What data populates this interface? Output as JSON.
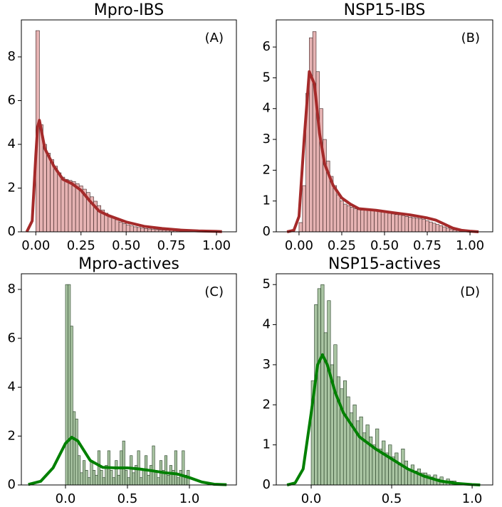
{
  "chart_data": [
    {
      "type": "histogram",
      "title": "Mpro-IBS",
      "annotation": "(A)",
      "color": "#e6b3b3",
      "edgecolor": "#3a2020",
      "bins": [
        0,
        0.02,
        0.04,
        0.06,
        0.08,
        0.1,
        0.12,
        0.14,
        0.16,
        0.18,
        0.2,
        0.22,
        0.24,
        0.26,
        0.28,
        0.3,
        0.32,
        0.34,
        0.36,
        0.38,
        0.4,
        0.42,
        0.44,
        0.46,
        0.48,
        0.5,
        0.52,
        0.54,
        0.56,
        0.58,
        0.6,
        0.62,
        0.64,
        0.66,
        0.68,
        0.7,
        0.72,
        0.74,
        0.76,
        0.78,
        0.8,
        0.82,
        0.84,
        0.86,
        0.88,
        0.9,
        0.92,
        0.94,
        0.96,
        0.98,
        1
      ],
      "values": [
        9.2,
        4.9,
        4.0,
        3.6,
        3.3,
        3.0,
        2.7,
        2.5,
        2.4,
        2.35,
        2.3,
        2.2,
        2.1,
        1.95,
        1.8,
        1.6,
        1.4,
        1.2,
        1.0,
        0.85,
        0.75,
        0.65,
        0.55,
        0.45,
        0.38,
        0.32,
        0.27,
        0.23,
        0.2,
        0.17,
        0.15,
        0.13,
        0.11,
        0.1,
        0.09,
        0.08,
        0.07,
        0.06,
        0.05,
        0.05,
        0.04,
        0.04,
        0.03,
        0.03,
        0.02,
        0.02,
        0.02,
        0.01,
        0.01,
        0.01
      ],
      "kde": {
        "color": "#a52a2a",
        "x": [
          -0.05,
          -0.02,
          0,
          0.01,
          0.02,
          0.05,
          0.1,
          0.15,
          0.2,
          0.25,
          0.3,
          0.35,
          0.4,
          0.5,
          0.6,
          0.7,
          0.8,
          0.9,
          1.0,
          1.03
        ],
        "values": [
          0,
          0.5,
          3.5,
          4.8,
          5.1,
          3.8,
          3.0,
          2.4,
          2.2,
          1.9,
          1.4,
          0.95,
          0.75,
          0.45,
          0.25,
          0.15,
          0.08,
          0.04,
          0.02,
          0.01
        ]
      },
      "xlim": [
        -0.08,
        1.11
      ],
      "ylim": [
        0,
        9.69
      ],
      "xticks": [
        {
          "value": 0,
          "label": "0.00"
        },
        0.25,
        {
          "value": 0.5,
          "label": "0.50"
        },
        0.75,
        {
          "value": 1,
          "label": "1.00"
        }
      ],
      "yticks": [
        0,
        2,
        4,
        6,
        8
      ]
    },
    {
      "type": "histogram",
      "title": "NSP15-IBS",
      "annotation": "(B)",
      "color": "#e6b3b3",
      "edgecolor": "#3a2020",
      "bins": [
        0,
        0.02,
        0.04,
        0.06,
        0.08,
        0.1,
        0.12,
        0.14,
        0.16,
        0.18,
        0.2,
        0.22,
        0.24,
        0.26,
        0.28,
        0.3,
        0.32,
        0.34,
        0.36,
        0.38,
        0.4,
        0.42,
        0.44,
        0.46,
        0.48,
        0.5,
        0.52,
        0.54,
        0.56,
        0.58,
        0.6,
        0.62,
        0.64,
        0.66,
        0.68,
        0.7,
        0.72,
        0.74,
        0.76,
        0.78,
        0.8,
        0.82,
        0.84,
        0.86,
        0.88,
        0.9,
        0.92,
        0.94,
        0.96,
        0.98,
        1
      ],
      "values": [
        0.3,
        1.5,
        4.5,
        6.3,
        6.5,
        5.2,
        4.0,
        3.0,
        2.3,
        1.8,
        1.5,
        1.2,
        1.0,
        0.9,
        0.85,
        0.8,
        0.75,
        0.72,
        0.7,
        0.7,
        0.7,
        0.7,
        0.68,
        0.66,
        0.64,
        0.62,
        0.6,
        0.58,
        0.56,
        0.55,
        0.53,
        0.5,
        0.48,
        0.46,
        0.44,
        0.42,
        0.4,
        0.36,
        0.32,
        0.28,
        0.24,
        0.2,
        0.16,
        0.12,
        0.09,
        0.06,
        0.04,
        0.03,
        0.02,
        0.01
      ],
      "kde": {
        "color": "#a52a2a",
        "x": [
          -0.07,
          -0.03,
          0,
          0.03,
          0.06,
          0.09,
          0.12,
          0.15,
          0.2,
          0.25,
          0.3,
          0.35,
          0.45,
          0.55,
          0.65,
          0.75,
          0.8,
          0.85,
          0.9,
          0.95,
          1.0,
          1.05
        ],
        "values": [
          0,
          0.05,
          0.5,
          3.0,
          5.2,
          4.8,
          3.2,
          2.2,
          1.5,
          1.1,
          0.9,
          0.75,
          0.7,
          0.62,
          0.55,
          0.45,
          0.38,
          0.25,
          0.12,
          0.05,
          0.02,
          0
        ]
      },
      "xlim": [
        -0.133,
        1.133
      ],
      "ylim": [
        0,
        6.88
      ],
      "xticks": [
        {
          "value": 0,
          "label": "0.00"
        },
        0.25,
        {
          "value": 0.5,
          "label": "0.50"
        },
        0.75,
        {
          "value": 1,
          "label": "1.00"
        }
      ],
      "yticks": [
        0,
        1,
        2,
        3,
        4,
        5,
        6
      ]
    },
    {
      "type": "histogram",
      "title": "Mpro-actives",
      "annotation": "(C)",
      "color": "#a9c4a2",
      "edgecolor": "#203a20",
      "bins": [
        0,
        0.02,
        0.04,
        0.06,
        0.08,
        0.1,
        0.12,
        0.14,
        0.16,
        0.18,
        0.2,
        0.22,
        0.24,
        0.26,
        0.28,
        0.3,
        0.32,
        0.34,
        0.36,
        0.38,
        0.4,
        0.42,
        0.44,
        0.46,
        0.48,
        0.5,
        0.52,
        0.54,
        0.56,
        0.58,
        0.6,
        0.62,
        0.64,
        0.66,
        0.68,
        0.7,
        0.72,
        0.74,
        0.76,
        0.78,
        0.8,
        0.82,
        0.84,
        0.86,
        0.88,
        0.9,
        0.92,
        0.94,
        0.96,
        0.98,
        1
      ],
      "values": [
        8.2,
        8.2,
        6.5,
        3.0,
        2.7,
        1.2,
        0.5,
        1.0,
        0.6,
        0.3,
        1.0,
        0.6,
        0.4,
        1.4,
        0.6,
        0.3,
        0.8,
        1.4,
        0.6,
        0.3,
        1.0,
        0.4,
        1.4,
        1.8,
        0.6,
        0.3,
        1.2,
        0.5,
        0.8,
        1.4,
        0.3,
        0.6,
        1.2,
        0.4,
        0.8,
        1.6,
        0.6,
        0.3,
        1.0,
        0.6,
        1.2,
        0.4,
        0.8,
        0.6,
        1.4,
        0.3,
        0.6,
        1.4,
        0.4,
        0.6
      ],
      "kde": {
        "color": "#008000",
        "x": [
          -0.3,
          -0.2,
          -0.1,
          0,
          0.05,
          0.1,
          0.2,
          0.3,
          0.4,
          0.5,
          0.6,
          0.7,
          0.8,
          0.9,
          1.0,
          1.1,
          1.2,
          1.3
        ],
        "values": [
          0.02,
          0.15,
          0.7,
          1.7,
          1.95,
          1.8,
          1.0,
          0.72,
          0.7,
          0.7,
          0.65,
          0.58,
          0.5,
          0.45,
          0.3,
          0.12,
          0.03,
          0.01
        ]
      },
      "xlim": [
        -0.356,
        1.379
      ],
      "ylim": [
        0,
        8.64
      ],
      "xticks": [
        {
          "value": 0,
          "label": "0.0"
        },
        0.5,
        {
          "value": 1,
          "label": "1.0"
        }
      ],
      "yticks": [
        0,
        2,
        4,
        6,
        8
      ]
    },
    {
      "type": "histogram",
      "title": "NSP15-actives",
      "annotation": "(D)",
      "color": "#a9c4a2",
      "edgecolor": "#203a20",
      "bins": [
        0,
        0.02,
        0.04,
        0.06,
        0.08,
        0.1,
        0.12,
        0.14,
        0.16,
        0.18,
        0.2,
        0.22,
        0.24,
        0.26,
        0.28,
        0.3,
        0.32,
        0.34,
        0.36,
        0.38,
        0.4,
        0.42,
        0.44,
        0.46,
        0.48,
        0.5,
        0.52,
        0.54,
        0.56,
        0.58,
        0.6,
        0.62,
        0.64,
        0.66,
        0.68,
        0.7,
        0.72,
        0.74,
        0.76,
        0.78,
        0.8,
        0.82,
        0.84,
        0.86,
        0.88,
        0.9,
        0.92,
        0.94,
        0.96,
        0.98,
        1
      ],
      "values": [
        2.6,
        4.5,
        4.9,
        5.0,
        3.8,
        4.6,
        3.0,
        3.5,
        2.7,
        2.4,
        2.6,
        2.2,
        1.8,
        2.0,
        1.6,
        1.7,
        1.3,
        1.5,
        1.2,
        1.0,
        1.4,
        0.9,
        1.1,
        0.8,
        1.0,
        0.7,
        0.8,
        0.5,
        0.9,
        0.6,
        0.4,
        0.5,
        0.35,
        0.4,
        0.3,
        0.3,
        0.25,
        0.2,
        0.25,
        0.15,
        0.2,
        0.1,
        0.15,
        0.1,
        0.1,
        0.05,
        0.05,
        0.03,
        0,
        0
      ],
      "kde": {
        "color": "#008000",
        "x": [
          -0.15,
          -0.1,
          -0.05,
          0,
          0.04,
          0.07,
          0.1,
          0.15,
          0.2,
          0.3,
          0.4,
          0.5,
          0.6,
          0.7,
          0.8,
          0.9,
          1.0,
          1.05
        ],
        "values": [
          0,
          0.05,
          0.4,
          1.8,
          3.0,
          3.25,
          3.0,
          2.3,
          1.8,
          1.2,
          0.9,
          0.65,
          0.4,
          0.22,
          0.1,
          0.04,
          0.01,
          0
        ]
      },
      "xlim": [
        -0.217,
        1.128
      ],
      "ylim": [
        0,
        5.27
      ],
      "xticks": [
        {
          "value": 0,
          "label": "0.0"
        },
        0.5,
        {
          "value": 1,
          "label": "1.0"
        }
      ],
      "yticks": [
        0,
        1,
        2,
        3,
        4,
        5
      ]
    }
  ]
}
